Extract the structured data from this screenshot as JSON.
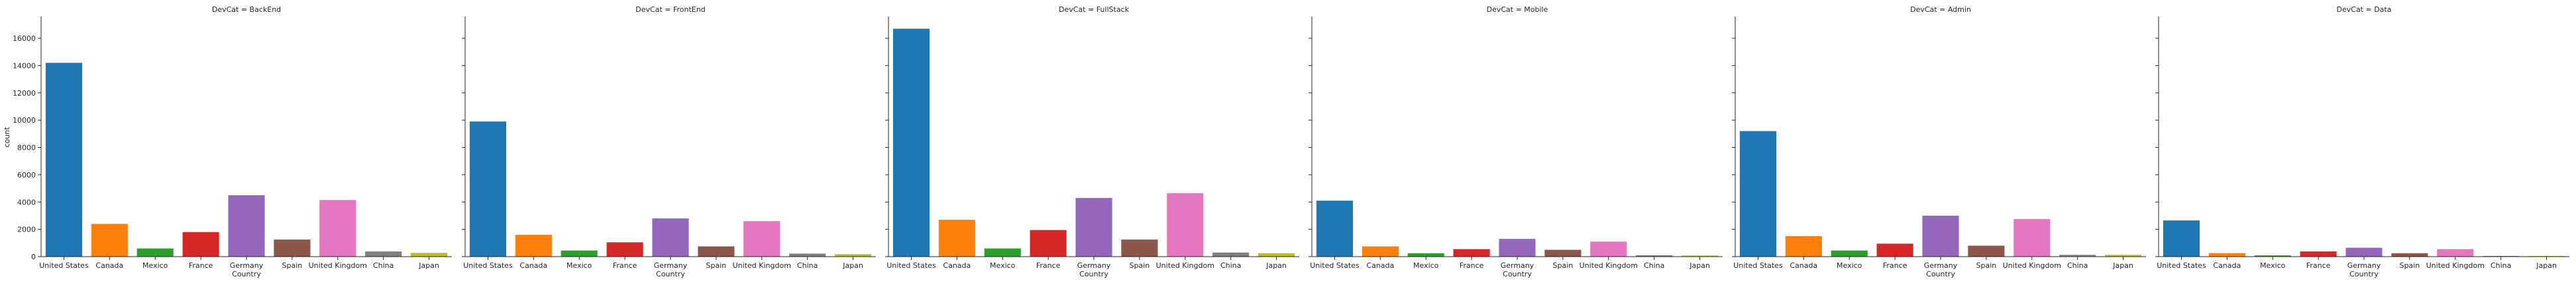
{
  "chart_data": {
    "type": "bar",
    "facet_variable": "DevCat",
    "xlabel": "Country",
    "ylabel": "count",
    "ylim": [
      0,
      17500
    ],
    "yticks": [
      0,
      2000,
      4000,
      6000,
      8000,
      10000,
      12000,
      14000,
      16000
    ],
    "grid": false,
    "sharey": true,
    "categories": [
      "United States",
      "Canada",
      "Mexico",
      "France",
      "Germany",
      "Spain",
      "United Kingdom",
      "China",
      "Japan"
    ],
    "colors": [
      "#1f77b4",
      "#ff7f0e",
      "#2ca02c",
      "#d62728",
      "#9467bd",
      "#8c564b",
      "#e377c2",
      "#7f7f7f",
      "#bcbd22"
    ],
    "panels": [
      {
        "title": "DevCat = BackEnd",
        "values": [
          14200,
          2400,
          600,
          1800,
          4500,
          1250,
          4150,
          380,
          280
        ]
      },
      {
        "title": "DevCat = FrontEnd",
        "values": [
          9900,
          1600,
          450,
          1050,
          2800,
          750,
          2600,
          220,
          180
        ]
      },
      {
        "title": "DevCat = FullStack",
        "values": [
          16700,
          2700,
          600,
          1950,
          4300,
          1250,
          4650,
          300,
          250
        ]
      },
      {
        "title": "DevCat = Mobile",
        "values": [
          4100,
          750,
          250,
          550,
          1300,
          500,
          1100,
          100,
          80
        ]
      },
      {
        "title": "DevCat = Admin",
        "values": [
          9200,
          1500,
          450,
          950,
          3000,
          800,
          2750,
          130,
          130
        ]
      },
      {
        "title": "DevCat = Data",
        "values": [
          2650,
          260,
          90,
          380,
          650,
          250,
          550,
          50,
          50
        ]
      }
    ]
  }
}
